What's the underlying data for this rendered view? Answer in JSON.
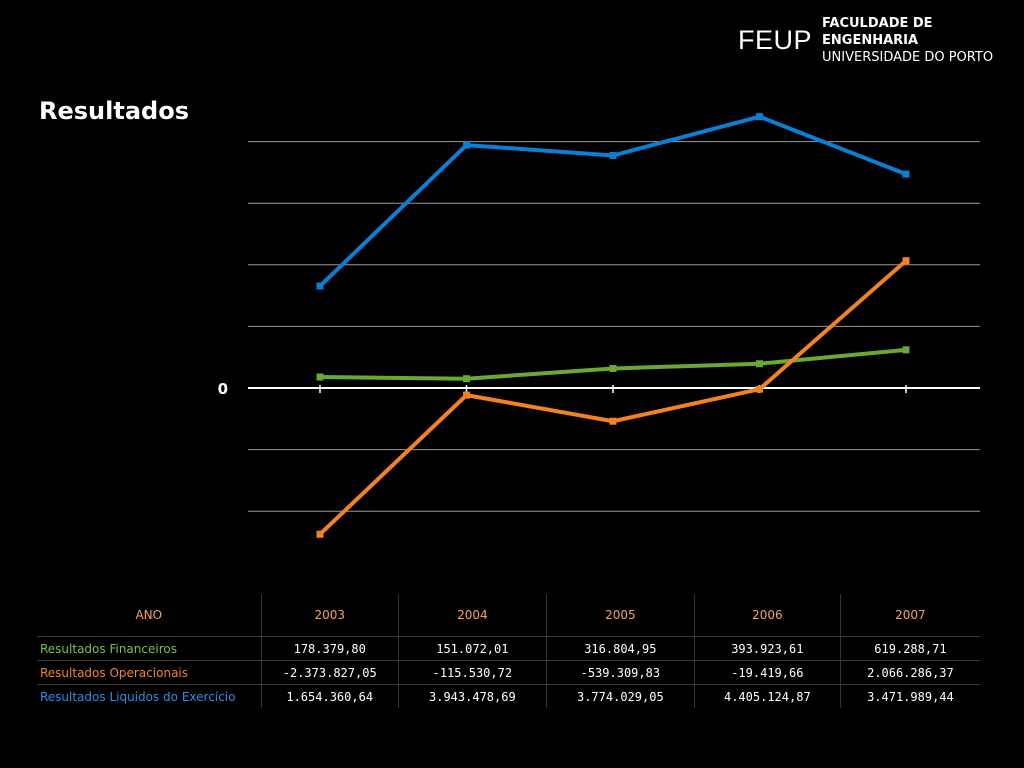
{
  "header": {
    "logo_mark": "FEUP",
    "logo_line1": "FACULDADE DE ENGENHARIA",
    "logo_line2": "UNIVERSIDADE DO PORTO"
  },
  "page": {
    "title": "Resultados"
  },
  "colors": {
    "financeiros": "#6aa834",
    "operacionais": "#f58220",
    "liquidos": "#0a7fd6",
    "grid": "#9a9a9a",
    "zero_line": "#ffffff",
    "table_header": "#f7a35c"
  },
  "chart_data": {
    "type": "line",
    "categories": [
      "2003",
      "2004",
      "2005",
      "2006",
      "2007"
    ],
    "series": [
      {
        "name": "Resultados Financeiros",
        "values": [
          178379.8,
          151072.01,
          316804.95,
          393923.61,
          619288.71
        ]
      },
      {
        "name": "Resultados Operacionais",
        "values": [
          -2373827.05,
          -115530.72,
          -539309.83,
          -19419.66,
          2066286.37
        ]
      },
      {
        "name": "Resultados Líquidos do Exercício",
        "values": [
          1654360.64,
          3943478.69,
          3774029.05,
          4405124.87,
          3471989.44
        ]
      }
    ],
    "ylim": [
      -2000000,
      4000000
    ],
    "yticks": [
      -2000000,
      -1000000,
      0,
      1000000,
      2000000,
      3000000,
      4000000
    ],
    "ytick_labels": [
      "0"
    ],
    "grid": true,
    "legend": "table below chart"
  },
  "table": {
    "header_label": "ANO",
    "years": [
      "2003",
      "2004",
      "2005",
      "2006",
      "2007"
    ],
    "rows": [
      {
        "label": "Resultados Financeiros",
        "values": [
          "178.379,80",
          "151.072,01",
          "316.804,95",
          "393.923,61",
          "619.288,71"
        ]
      },
      {
        "label": "Resultados Operacionais",
        "values": [
          "-2.373.827,05",
          "-115.530,72",
          "-539.309,83",
          "-19.419,66",
          "2.066.286,37"
        ]
      },
      {
        "label": "Resultados Liquidos do Exercício",
        "values": [
          "1.654.360,64",
          "3.943.478,69",
          "3.774.029,05",
          "4.405.124,87",
          "3.471.989,44"
        ]
      }
    ]
  }
}
